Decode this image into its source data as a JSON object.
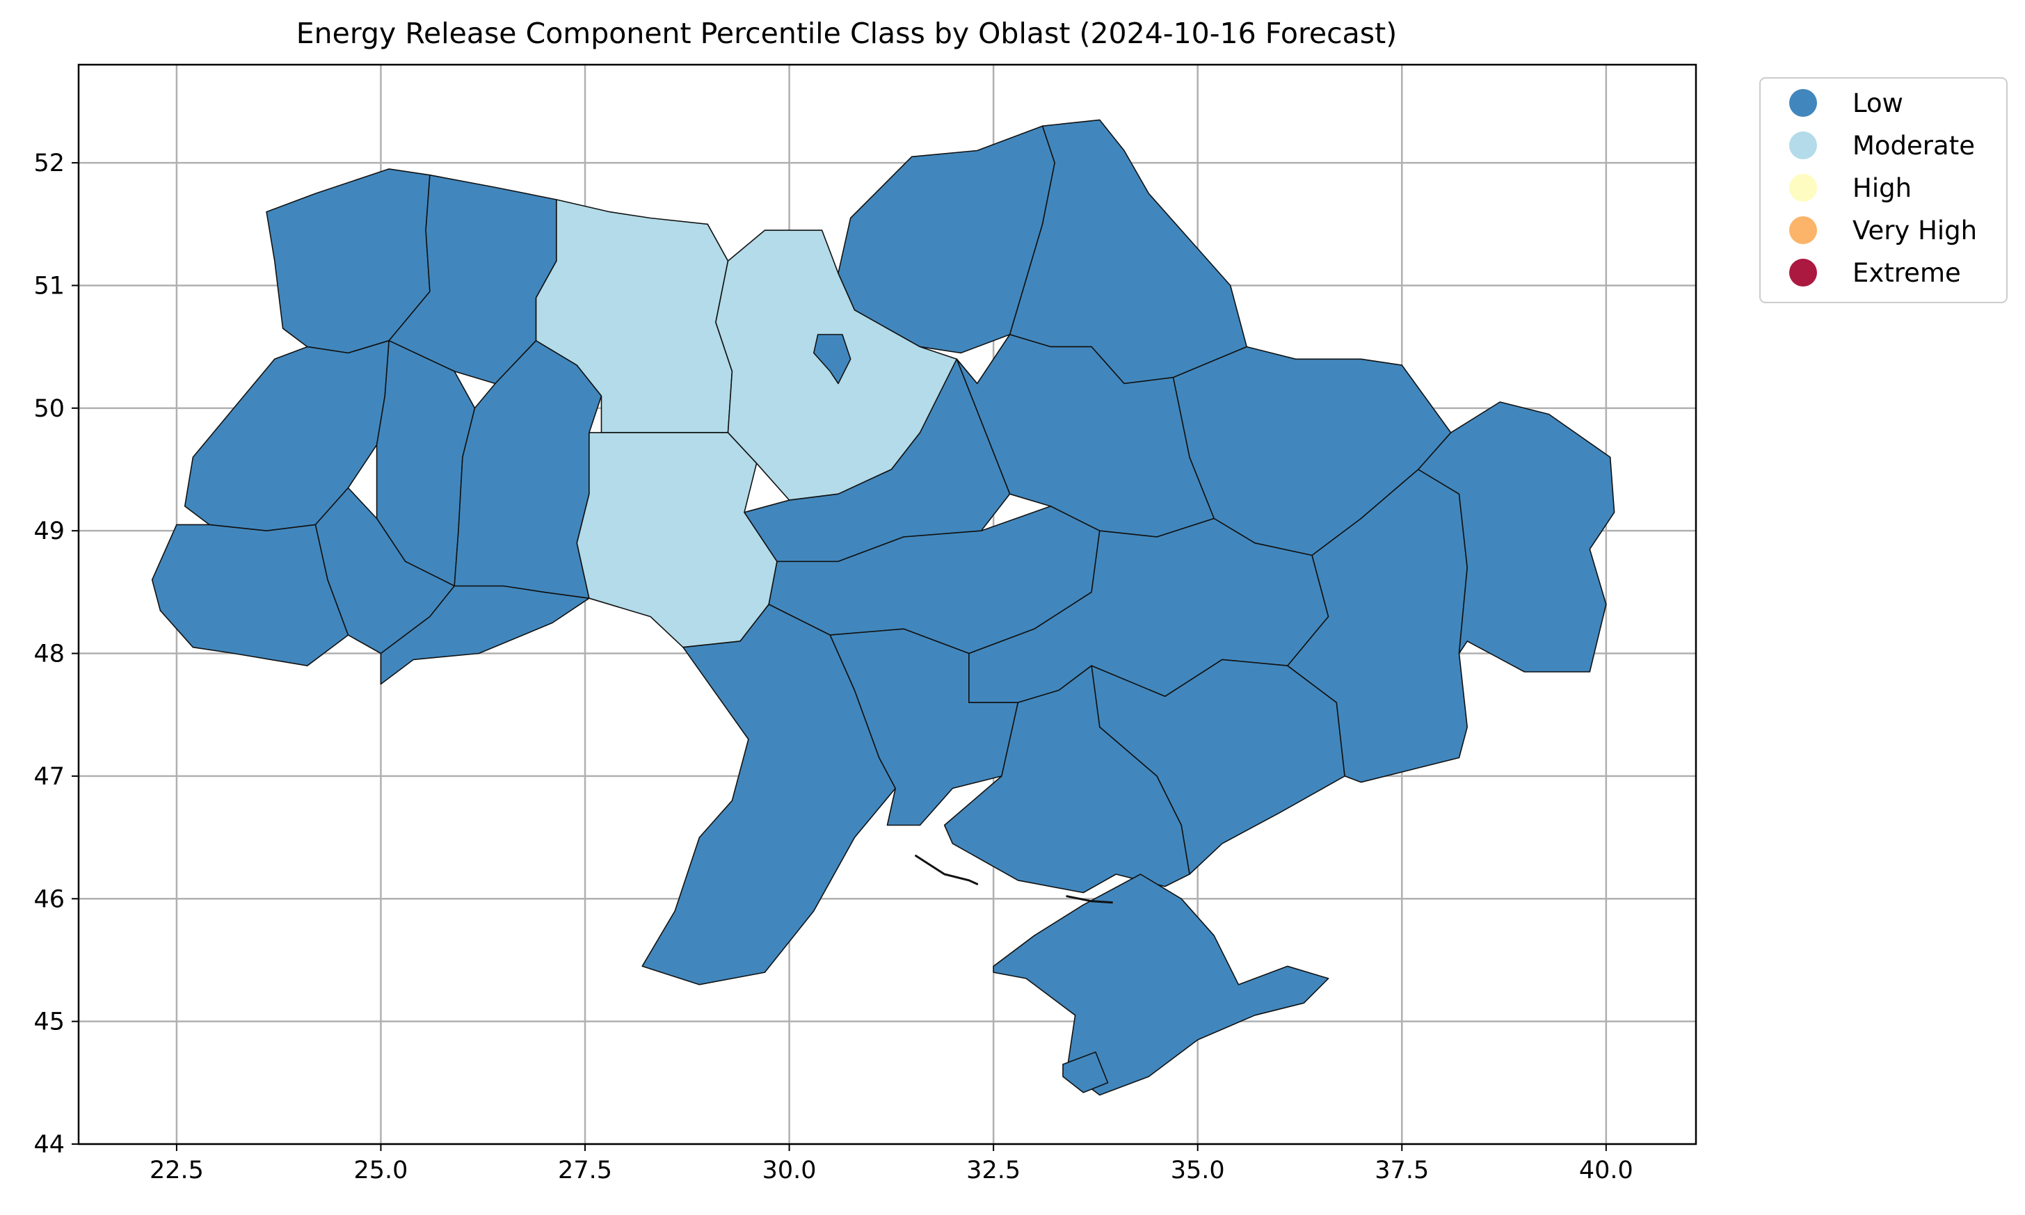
{
  "chart_data": {
    "type": "choropleth",
    "title": "Energy Release Component Percentile Class by Oblast (2024-10-16 Forecast)",
    "xlabel": "",
    "ylabel": "",
    "xlim": [
      21.3,
      41.1
    ],
    "ylim": [
      44.0,
      52.8
    ],
    "x_ticks": [
      22.5,
      25.0,
      27.5,
      30.0,
      32.5,
      35.0,
      37.5,
      40.0
    ],
    "x_tick_labels": [
      "22.5",
      "25.0",
      "27.5",
      "30.0",
      "32.5",
      "35.0",
      "37.5",
      "40.0"
    ],
    "y_ticks": [
      44,
      45,
      46,
      47,
      48,
      49,
      50,
      51,
      52
    ],
    "y_tick_labels": [
      "44",
      "45",
      "46",
      "47",
      "48",
      "49",
      "50",
      "51",
      "52"
    ],
    "grid": true,
    "legend_placement": "outside upper right",
    "legend": [
      {
        "label": "Low",
        "color": "#4187bd"
      },
      {
        "label": "Moderate",
        "color": "#b3dbe9"
      },
      {
        "label": "High",
        "color": "#fefcc0"
      },
      {
        "label": "Very High",
        "color": "#fbb469"
      },
      {
        "label": "Extreme",
        "color": "#ab1840"
      }
    ],
    "regions_class": {
      "Volyn": "Low",
      "Rivne": "Low",
      "Lviv": "Low",
      "Ternopil": "Low",
      "Zakarpattia": "Low",
      "Ivano-Frankivsk": "Low",
      "Chernivtsi": "Low",
      "Khmelnytskyi": "Low",
      "Zhytomyr": "Moderate",
      "Kyiv": "Moderate",
      "Vinnytsia": "Moderate",
      "Kyiv City": "Low",
      "Chernihiv": "Low",
      "Sumy": "Low",
      "Kharkiv": "Low",
      "Poltava": "Low",
      "Cherkasy": "Low",
      "Kirovohrad": "Low",
      "Odesa": "Low",
      "Mykolaiv": "Low",
      "Dnipropetrovsk": "Low",
      "Zaporizhzhia": "Low",
      "Kherson": "Low",
      "Donetsk": "Low",
      "Luhansk": "Low",
      "Crimea": "Low",
      "Sevastopol": "Low"
    },
    "style": {
      "edge_color": "#111111",
      "grid_color": "#b0b0b0"
    }
  }
}
